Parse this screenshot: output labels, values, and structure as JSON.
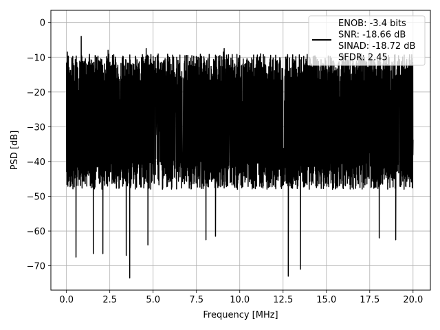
{
  "chart_data": {
    "type": "line",
    "title": "",
    "xlabel": "Frequency [MHz]",
    "ylabel": "PSD [dB]",
    "xlim": [
      -0.9,
      21.0
    ],
    "ylim": [
      -77,
      3.5
    ],
    "xticks": [
      0.0,
      2.5,
      5.0,
      7.5,
      10.0,
      12.5,
      15.0,
      17.5,
      20.0
    ],
    "xtick_labels": [
      "0.0",
      "2.5",
      "5.0",
      "7.5",
      "10.0",
      "12.5",
      "15.0",
      "17.5",
      "20.0"
    ],
    "yticks": [
      0,
      -10,
      -20,
      -30,
      -40,
      -50,
      -60,
      -70
    ],
    "ytick_labels": [
      "0",
      "−10",
      "−20",
      "−30",
      "−40",
      "−50",
      "−60",
      "−70"
    ],
    "grid": true,
    "legend_position": "top-right",
    "legend_lines": [
      "ENOB: -3.4 bits",
      "SNR: -18.66 dB",
      "SINAD: -18.72 dB",
      "SFDR: 2.45"
    ],
    "series": [
      {
        "color": "#000000",
        "x_range": [
          0.0,
          20.0
        ],
        "typical_band": [
          -45,
          -12
        ],
        "peaks": [
          {
            "x": 0.05,
            "y": -8.5
          },
          {
            "x": 0.85,
            "y": -4.0
          },
          {
            "x": 2.4,
            "y": -8.0
          },
          {
            "x": 4.6,
            "y": -7.5
          },
          {
            "x": 9.05,
            "y": -8.5
          },
          {
            "x": 9.1,
            "y": -7.5
          },
          {
            "x": 11.2,
            "y": -9.0
          },
          {
            "x": 12.65,
            "y": -10.0
          },
          {
            "x": 15.9,
            "y": -9.0
          }
        ],
        "troughs": [
          {
            "x": 0.55,
            "y": -67.5
          },
          {
            "x": 1.55,
            "y": -66.5
          },
          {
            "x": 2.1,
            "y": -66.5
          },
          {
            "x": 3.45,
            "y": -67.0
          },
          {
            "x": 3.65,
            "y": -73.5
          },
          {
            "x": 4.7,
            "y": -64.0
          },
          {
            "x": 8.05,
            "y": -62.5
          },
          {
            "x": 8.6,
            "y": -61.5
          },
          {
            "x": 12.8,
            "y": -73.0
          },
          {
            "x": 13.5,
            "y": -71.0
          },
          {
            "x": 18.05,
            "y": -62.0
          },
          {
            "x": 19.0,
            "y": -62.5
          }
        ]
      }
    ]
  }
}
